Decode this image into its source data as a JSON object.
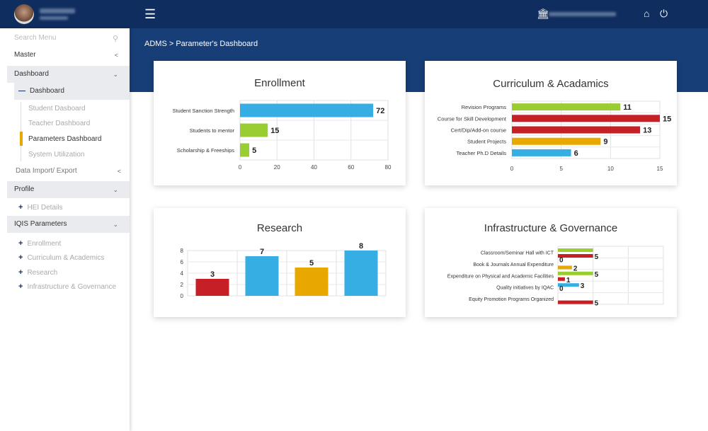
{
  "header": {
    "menu_icon": "hamburger-icon",
    "institution_icon": "bank-icon",
    "home_icon": "home-icon",
    "power_icon": "power-icon"
  },
  "breadcrumb": "ADMS > Parameter's Dashboard",
  "sidebar": {
    "search_placeholder": "Search Menu",
    "master": "Master",
    "dashboard": "Dashboard",
    "dashboard_sub": "Dashboard",
    "dashboard_items": [
      "Student Dasboard",
      "Teacher Dashboard",
      "Parameters Dashboard",
      "System Utilization"
    ],
    "active_item": "Parameters Dashboard",
    "data_import": "Data Import/ Export",
    "profile": "Profile",
    "profile_items": [
      "HEI Details"
    ],
    "iqis": "IQIS Parameters",
    "iqis_items": [
      "Enrollment",
      "Curriculum & Academics",
      "Research",
      "Infrastructure & Governance"
    ]
  },
  "colors": {
    "header": "#0f2d5e",
    "band": "#173e76",
    "accent": "#e8a800",
    "green": "#9acd32",
    "red": "#c62026",
    "yellow": "#e8a800",
    "blue": "#36aee3"
  },
  "chart_data": [
    {
      "type": "bar",
      "orientation": "horizontal",
      "title": "Enrollment",
      "categories": [
        "Student Sanction Strength",
        "Students to mentor",
        "Scholarship & Freeships"
      ],
      "values": [
        72,
        15,
        5
      ],
      "colors": [
        "#36aee3",
        "#9acd32",
        "#9acd32"
      ],
      "xlim": [
        0,
        80
      ],
      "ticks": [
        0,
        20,
        40,
        60,
        80
      ]
    },
    {
      "type": "bar",
      "orientation": "horizontal",
      "title": "Curriculum & Acadamics",
      "categories": [
        "Revision Programs",
        "Course for Skill Development",
        "Cert/Dip/Add-on course",
        "Student Projects",
        "Teacher Ph.D Details"
      ],
      "values": [
        11,
        15,
        13,
        9,
        6
      ],
      "colors": [
        "#9acd32",
        "#c62026",
        "#c62026",
        "#e8a800",
        "#36aee3"
      ],
      "xlim": [
        0,
        15
      ],
      "ticks": [
        0,
        5,
        10,
        15
      ]
    },
    {
      "type": "bar",
      "orientation": "vertical",
      "title": "Research",
      "categories": [
        "",
        "",
        "",
        ""
      ],
      "values": [
        3,
        7,
        5,
        8
      ],
      "colors": [
        "#c62026",
        "#36aee3",
        "#e8a800",
        "#36aee3"
      ],
      "ylim": [
        0,
        8
      ],
      "ticks": [
        0,
        2,
        4,
        6,
        8
      ]
    },
    {
      "type": "bar",
      "orientation": "horizontal",
      "title": "Infrastructure & Governance",
      "categories": [
        "Classroom/Seminar Hall with ICT",
        "Book & Journals Annual Expenditure",
        "Expenditure on Physical and Academic Facilities",
        "Quality initiatives by IQAC",
        "Equity Promotion Programs Organized"
      ],
      "grouped": [
        [
          {
            "v": 5,
            "c": "#9acd32",
            "label": false
          },
          {
            "v": 5,
            "c": "#c62026"
          }
        ],
        [
          {
            "v": 0,
            "c": "#9acd32"
          },
          {
            "v": 2,
            "c": "#e8a800"
          }
        ],
        [
          {
            "v": 5,
            "c": "#9acd32"
          },
          {
            "v": 1,
            "c": "#c62026"
          }
        ],
        [
          {
            "v": 3,
            "c": "#36aee3"
          },
          {
            "v": 0,
            "c": "#c62026"
          }
        ],
        [
          {
            "v": null
          },
          {
            "v": 5,
            "c": "#c62026"
          }
        ]
      ],
      "xlim": [
        0,
        15
      ]
    }
  ]
}
